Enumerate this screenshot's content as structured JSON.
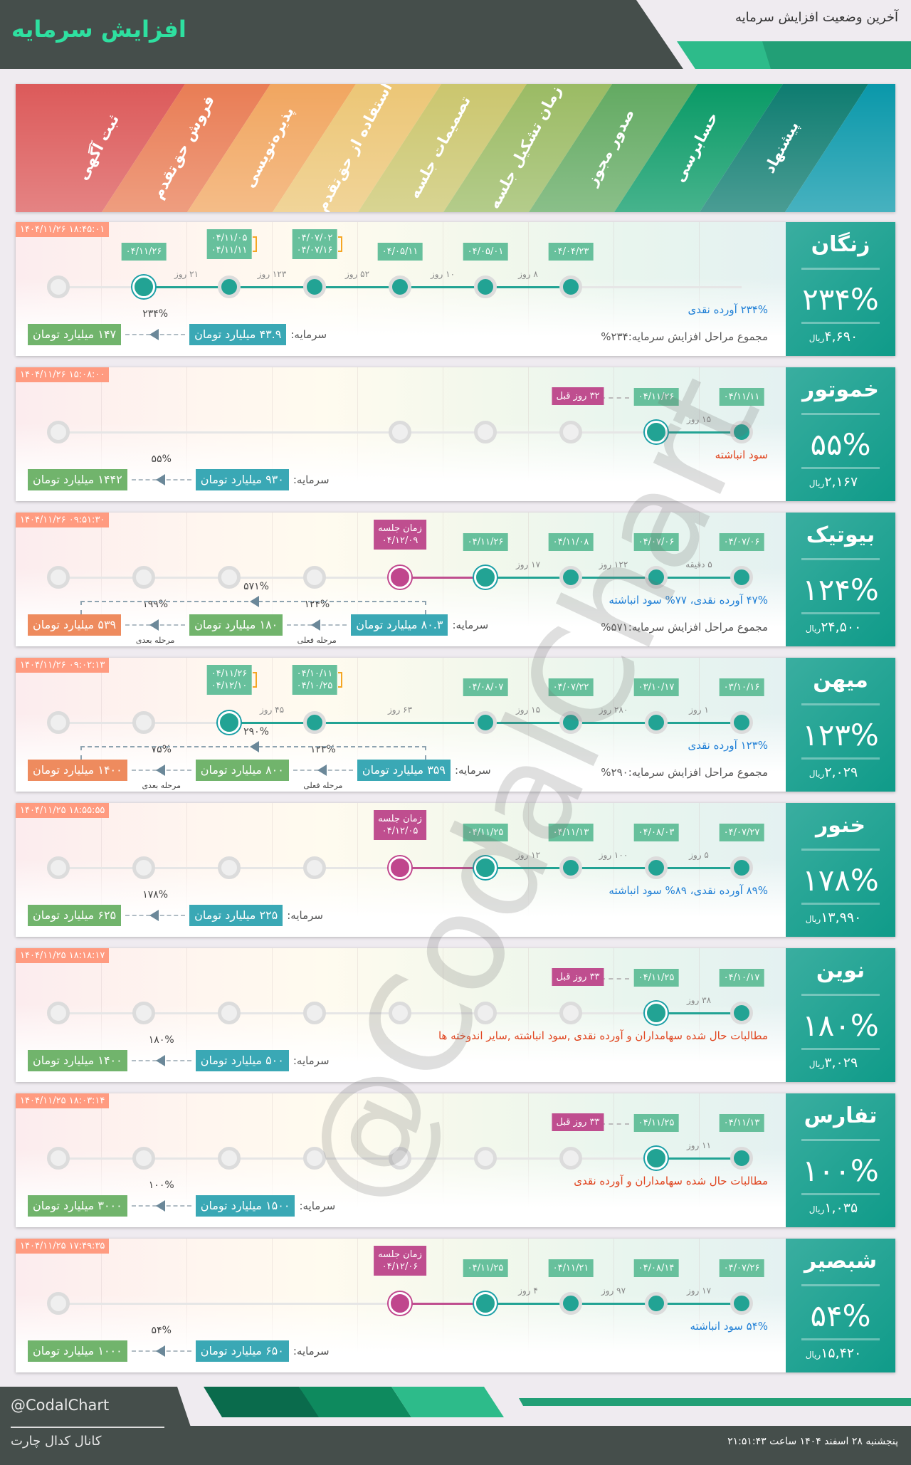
{
  "header": {
    "title": "افزایش سرمایه",
    "subtitle": "آخرین وضعیت افزایش سرمایه"
  },
  "stages": [
    {
      "label": "ثبت آگهی",
      "color": "#dc5a5a"
    },
    {
      "label": "فروش حق‌تقدم",
      "color": "#e97d55"
    },
    {
      "label": "پذیره‌نویسی",
      "color": "#f1a660"
    },
    {
      "label": "استفاده از حق‌تقدم",
      "color": "#ecc676"
    },
    {
      "label": "تصمیمات جلسه",
      "color": "#cbc66e"
    },
    {
      "label": "زمان تشکیل جلسه",
      "color": "#9bbb64"
    },
    {
      "label": "صدور مجوز",
      "color": "#63aa62"
    },
    {
      "label": "حسابرسی",
      "color": "#099a66"
    },
    {
      "label": "پیشنهاد",
      "color": "#0e7c70"
    },
    {
      "label": "",
      "color": "#0a98aa"
    }
  ],
  "colors": {
    "done": "#22a394",
    "meeting": "#bf4e8f",
    "description_blue": "#1f7fd6",
    "description_red": "#e0441e",
    "panel": "#14a08e"
  },
  "watermark": "@CodalChart",
  "capital_label": "سرمایه:",
  "cards": [
    {
      "symbol": "زنگان",
      "percent": "۲۳۴%",
      "price": "۴,۶۹۰",
      "currency": "ریال",
      "timestamp": "۱۴۰۴/۱۱/۲۶ ۱۸:۴۵:۰۱",
      "nodes": [
        {
          "stage": 0,
          "state": "gray"
        },
        {
          "stage": 1,
          "state": "current",
          "label": [
            "۰۴/۱۱/۲۶"
          ],
          "gap": "۲۱ روز"
        },
        {
          "stage": 2,
          "state": "done",
          "label": [
            "۰۴/۱۱/۰۵",
            "۰۴/۱۱/۱۱"
          ],
          "gap": "۱۲۳ روز"
        },
        {
          "stage": 3,
          "state": "done",
          "label": [
            "۰۴/۰۷/۰۲",
            "۰۴/۰۷/۱۶"
          ],
          "gap": "۵۲ روز"
        },
        {
          "stage": 4,
          "state": "done",
          "label": [
            "۰۴/۰۵/۱۱"
          ],
          "gap": "۱۰ روز"
        },
        {
          "stage": 5,
          "state": "done",
          "label": [
            "۰۴/۰۵/۰۱"
          ],
          "gap": "۸ روز"
        },
        {
          "stage": 6,
          "state": "done",
          "label": [
            "۰۴/۰۴/۲۳"
          ]
        }
      ],
      "description": {
        "text": "۲۳۴% آورده نقدی",
        "tone": "blue"
      },
      "summary": "مجموع مراحل افزایش سرمایه:۲۳۴%",
      "capital": {
        "current": "۴۳.۹ میلیارد تومان",
        "steps": [
          {
            "pct": "۲۳۴%",
            "value": "۱۴۷ میلیارد تومان"
          }
        ]
      }
    },
    {
      "symbol": "خموتور",
      "percent": "۵۵%",
      "price": "۲,۱۶۷",
      "currency": "ریال",
      "timestamp": "۱۴۰۴/۱۱/۲۶ ۱۵:۰۸:۰۰",
      "nodes": [
        {
          "stage": 0,
          "state": "gray"
        },
        {
          "stage": 4,
          "state": "gray"
        },
        {
          "stage": 5,
          "state": "gray"
        },
        {
          "stage": 6,
          "state": "gray"
        },
        {
          "stage": 7,
          "state": "current",
          "label": [
            "۰۴/۱۱/۲۶"
          ],
          "gap": "۱۵ روز"
        },
        {
          "stage": 8,
          "state": "done",
          "label": [
            "۰۴/۱۱/۱۱"
          ]
        }
      ],
      "ago": "۳۲ روز قبل",
      "description": {
        "text": "سود انباشته",
        "tone": "red"
      },
      "capital": {
        "current": "۹۳۰ میلیارد تومان",
        "steps": [
          {
            "pct": "۵۵%",
            "value": "۱۴۴۲ میلیارد تومان"
          }
        ]
      }
    },
    {
      "symbol": "بیوتیک",
      "percent": "۱۲۴%",
      "price": "۲۴,۵۰۰",
      "currency": "ریال",
      "timestamp": "۱۴۰۴/۱۱/۲۶ ۰۹:۵۱:۳۰",
      "nodes": [
        {
          "stage": 0,
          "state": "gray"
        },
        {
          "stage": 1,
          "state": "gray"
        },
        {
          "stage": 2,
          "state": "gray"
        },
        {
          "stage": 3,
          "state": "gray"
        },
        {
          "stage": 4,
          "state": "meeting",
          "label": [
            "زمان جلسه",
            "۰۴/۱۲/۰۹"
          ]
        },
        {
          "stage": 5,
          "state": "current",
          "label": [
            "۰۴/۱۱/۲۶"
          ],
          "gap": "۱۷ روز"
        },
        {
          "stage": 6,
          "state": "done",
          "label": [
            "۰۴/۱۱/۰۸"
          ],
          "gap": "۱۲۲ روز"
        },
        {
          "stage": 7,
          "state": "done",
          "label": [
            "۰۴/۰۷/۰۶"
          ],
          "gap": "۵ دقیقه"
        },
        {
          "stage": 8,
          "state": "done",
          "label": [
            "۰۴/۰۷/۰۶"
          ]
        }
      ],
      "description": {
        "text": "۴۷% آورده نقدی، ۷۷% سود انباشته",
        "tone": "blue"
      },
      "summary": "مجموع مراحل افزایش سرمایه:۵۷۱%",
      "capital": {
        "current": "۸۰.۳ میلیارد تومان",
        "total_pct": "۵۷۱%",
        "steps": [
          {
            "pct": "۱۲۴%",
            "stage_label": "مرحله فعلی",
            "value": "۱۸۰ میلیارد تومان"
          },
          {
            "pct": "۱۹۹%",
            "stage_label": "مرحله بعدی",
            "value": "۵۳۹ میلیارد تومان"
          }
        ]
      }
    },
    {
      "symbol": "میهن",
      "percent": "۱۲۳%",
      "price": "۲,۰۲۹",
      "currency": "ریال",
      "timestamp": "۱۴۰۴/۱۱/۲۶ ۰۹:۰۲:۱۳",
      "nodes": [
        {
          "stage": 0,
          "state": "gray"
        },
        {
          "stage": 1,
          "state": "gray"
        },
        {
          "stage": 2,
          "state": "current",
          "label": [
            "۰۴/۱۱/۲۶",
            "۰۴/۱۲/۱۰"
          ],
          "gap": "۴۵ روز"
        },
        {
          "stage": 3,
          "state": "done",
          "label": [
            "۰۴/۱۰/۱۱",
            "۰۴/۱۰/۲۵"
          ],
          "gap": "۶۳ روز"
        },
        {
          "stage": 5,
          "state": "done",
          "label": [
            "۰۴/۰۸/۰۷"
          ],
          "gap": "۱۵ روز"
        },
        {
          "stage": 6,
          "state": "done",
          "label": [
            "۰۴/۰۷/۲۲"
          ],
          "gap": "۲۸۰ روز"
        },
        {
          "stage": 7,
          "state": "done",
          "label": [
            "۰۳/۱۰/۱۷"
          ],
          "gap": "۱ روز"
        },
        {
          "stage": 8,
          "state": "done",
          "label": [
            "۰۳/۱۰/۱۶"
          ]
        }
      ],
      "description": {
        "text": "۱۲۳% آورده نقدی",
        "tone": "blue"
      },
      "summary": "مجموع مراحل افزایش سرمایه:۲۹۰%",
      "capital": {
        "current": "۳۵۹ میلیارد تومان",
        "total_pct": "۲۹۰%",
        "steps": [
          {
            "pct": "۱۲۳%",
            "stage_label": "مرحله فعلی",
            "value": "۸۰۰ میلیارد تومان"
          },
          {
            "pct": "۷۵%",
            "stage_label": "مرحله بعدی",
            "value": "۱۴۰۰ میلیارد تومان"
          }
        ]
      }
    },
    {
      "symbol": "خنور",
      "percent": "۱۷۸%",
      "price": "۱۳,۹۹۰",
      "currency": "ریال",
      "timestamp": "۱۴۰۴/۱۱/۲۵ ۱۸:۵۵:۵۵",
      "nodes": [
        {
          "stage": 0,
          "state": "gray"
        },
        {
          "stage": 1,
          "state": "gray"
        },
        {
          "stage": 2,
          "state": "gray"
        },
        {
          "stage": 3,
          "state": "gray"
        },
        {
          "stage": 4,
          "state": "meeting",
          "label": [
            "زمان جلسه",
            "۰۴/۱۲/۰۵"
          ]
        },
        {
          "stage": 5,
          "state": "current",
          "label": [
            "۰۴/۱۱/۲۵"
          ],
          "gap": "۱۲ روز"
        },
        {
          "stage": 6,
          "state": "done",
          "label": [
            "۰۴/۱۱/۱۳"
          ],
          "gap": "۱۰۰ روز"
        },
        {
          "stage": 7,
          "state": "done",
          "label": [
            "۰۴/۰۸/۰۳"
          ],
          "gap": "۵ روز"
        },
        {
          "stage": 8,
          "state": "done",
          "label": [
            "۰۴/۰۷/۲۷"
          ]
        }
      ],
      "description": {
        "text": "۸۹% آورده نقدی، ۸۹% سود انباشته",
        "tone": "blue"
      },
      "capital": {
        "current": "۲۲۵ میلیارد تومان",
        "steps": [
          {
            "pct": "۱۷۸%",
            "value": "۶۲۵ میلیارد تومان"
          }
        ]
      }
    },
    {
      "symbol": "نوین",
      "percent": "۱۸۰%",
      "price": "۳,۰۲۹",
      "currency": "ریال",
      "timestamp": "۱۴۰۴/۱۱/۲۵ ۱۸:۱۸:۱۷",
      "nodes": [
        {
          "stage": 0,
          "state": "gray"
        },
        {
          "stage": 1,
          "state": "gray"
        },
        {
          "stage": 2,
          "state": "gray"
        },
        {
          "stage": 3,
          "state": "gray"
        },
        {
          "stage": 4,
          "state": "gray"
        },
        {
          "stage": 5,
          "state": "gray"
        },
        {
          "stage": 6,
          "state": "gray"
        },
        {
          "stage": 7,
          "state": "current",
          "label": [
            "۰۴/۱۱/۲۵"
          ],
          "gap": "۳۸ روز"
        },
        {
          "stage": 8,
          "state": "done",
          "label": [
            "۰۴/۱۰/۱۷"
          ]
        }
      ],
      "ago": "۳۳ روز قبل",
      "description": {
        "text": "مطالبات حال شده سهامداران و آورده نقدی ,سود انباشته ,سایر اندوخته ها",
        "tone": "red"
      },
      "capital": {
        "current": "۵۰۰ میلیارد تومان",
        "steps": [
          {
            "pct": "۱۸۰%",
            "value": "۱۴۰۰ میلیارد تومان"
          }
        ]
      }
    },
    {
      "symbol": "تفارس",
      "percent": "۱۰۰%",
      "price": "۱,۰۳۵",
      "currency": "ریال",
      "timestamp": "۱۴۰۴/۱۱/۲۵ ۱۸:۰۳:۱۴",
      "nodes": [
        {
          "stage": 0,
          "state": "gray"
        },
        {
          "stage": 1,
          "state": "gray"
        },
        {
          "stage": 2,
          "state": "gray"
        },
        {
          "stage": 3,
          "state": "gray"
        },
        {
          "stage": 4,
          "state": "gray"
        },
        {
          "stage": 5,
          "state": "gray"
        },
        {
          "stage": 6,
          "state": "gray"
        },
        {
          "stage": 7,
          "state": "current",
          "label": [
            "۰۴/۱۱/۲۵"
          ],
          "gap": "۱۱ روز"
        },
        {
          "stage": 8,
          "state": "done",
          "label": [
            "۰۴/۱۱/۱۳"
          ]
        }
      ],
      "ago": "۳۳ روز قبل",
      "description": {
        "text": "مطالبات حال شده سهامداران و آورده نقدی",
        "tone": "red"
      },
      "capital": {
        "current": "۱۵۰۰ میلیارد تومان",
        "steps": [
          {
            "pct": "۱۰۰%",
            "value": "۳۰۰۰ میلیارد تومان"
          }
        ]
      }
    },
    {
      "symbol": "شبصیر",
      "percent": "۵۴%",
      "price": "۱۵,۴۲۰",
      "currency": "ریال",
      "timestamp": "۱۴۰۴/۱۱/۲۵ ۱۷:۴۹:۳۵",
      "nodes": [
        {
          "stage": 0,
          "state": "gray"
        },
        {
          "stage": 4,
          "state": "meeting",
          "label": [
            "زمان جلسه",
            "۰۴/۱۲/۰۶"
          ]
        },
        {
          "stage": 5,
          "state": "current",
          "label": [
            "۰۴/۱۱/۲۵"
          ],
          "gap": "۴ روز"
        },
        {
          "stage": 6,
          "state": "done",
          "label": [
            "۰۴/۱۱/۲۱"
          ],
          "gap": "۹۷ روز"
        },
        {
          "stage": 7,
          "state": "done",
          "label": [
            "۰۴/۰۸/۱۴"
          ],
          "gap": "۱۷ روز"
        },
        {
          "stage": 8,
          "state": "done",
          "label": [
            "۰۴/۰۷/۲۶"
          ]
        }
      ],
      "description": {
        "text": "۵۴% سود انباشته",
        "tone": "blue"
      },
      "capital": {
        "current": "۶۵۰ میلیارد تومان",
        "steps": [
          {
            "pct": "۵۴%",
            "value": "۱۰۰۰ میلیارد تومان"
          }
        ]
      }
    }
  ],
  "footer": {
    "handle": "@CodalChart",
    "channel": "کانال کدال چارت",
    "datetime": "پنجشنبه ۲۸ اسفند ۱۴۰۴ ساعت ۲۱:۵۱:۴۳"
  }
}
